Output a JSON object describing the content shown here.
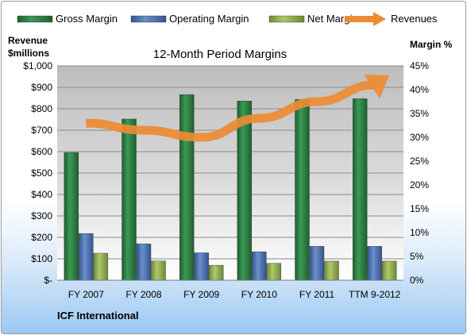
{
  "chart_data": {
    "type": "bar",
    "title": "12-Month Period Margins",
    "company": "ICF International",
    "categories": [
      "FY 2007",
      "FY 2008",
      "FY 2009",
      "FY 2010",
      "FY 2011",
      "TTM 9-2012"
    ],
    "series": [
      {
        "name": "Gross Margin",
        "axis": "left",
        "kind": "bar",
        "color": "#2e7d42",
        "values": [
          596,
          752,
          866,
          836,
          843,
          847
        ]
      },
      {
        "name": "Operating Margin",
        "axis": "left",
        "kind": "bar",
        "color": "#4a6eaa",
        "values": [
          218,
          170,
          128,
          133,
          158,
          158
        ]
      },
      {
        "name": "Net Margin",
        "axis": "left",
        "kind": "bar",
        "color": "#8cab4c",
        "values": [
          126,
          90,
          70,
          79,
          89,
          89
        ]
      },
      {
        "name": "Revenues",
        "axis": "right",
        "kind": "line",
        "color": "#ed8b33",
        "values": [
          33,
          31.5,
          30,
          34,
          37.5,
          41
        ]
      }
    ],
    "y_left": {
      "label_line1": "Revenue",
      "label_line2": "$millions",
      "min": 0,
      "max": 1000,
      "step": 100,
      "ticks": [
        "$-",
        "$100",
        "$200",
        "$300",
        "$400",
        "$500",
        "$600",
        "$700",
        "$800",
        "$900",
        "$1,000"
      ]
    },
    "y_right": {
      "label": "Margin %",
      "min": 0,
      "max": 45,
      "step": 5,
      "ticks": [
        "0%",
        "5%",
        "10%",
        "15%",
        "20%",
        "25%",
        "30%",
        "35%",
        "40%",
        "45%"
      ]
    },
    "legend_position": "top",
    "grid": true
  }
}
